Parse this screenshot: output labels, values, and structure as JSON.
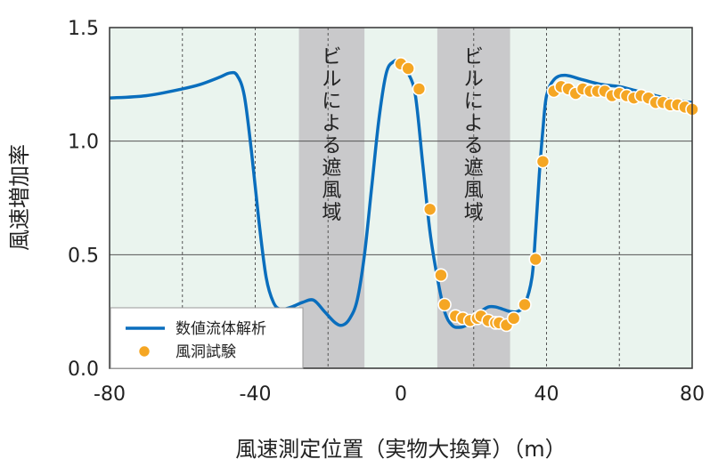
{
  "chart_data": {
    "type": "line",
    "xlabel": "風速測定位置（実物大換算）（m）",
    "ylabel": "風速増加率",
    "xlim": [
      -80,
      80
    ],
    "ylim": [
      0,
      1.5
    ],
    "x_ticks": [
      "-80",
      "-40",
      "0",
      "40",
      "80"
    ],
    "y_ticks": [
      "0.0",
      "0.5",
      "1.0",
      "1.5"
    ],
    "grid": "horizontal solid lines at 0.5 intervals, dashed vertical lines every 20 m",
    "colors": {
      "line": "#0a6ebd",
      "marker_fill": "#f5a623",
      "marker_stroke": "#ffffff",
      "plot_background": "#eaf4ee",
      "shaded_band": "#c9c9cb"
    },
    "shaded_regions": [
      {
        "x": [
          -28,
          -10
        ],
        "label": "ビルによる遮風域"
      },
      {
        "x": [
          10,
          30
        ],
        "label": "ビルによる遮風域"
      }
    ],
    "legend": {
      "position": "bottom-left",
      "entries": [
        "数値流体解析",
        "風洞試験"
      ]
    },
    "series": [
      {
        "name": "数値流体解析",
        "style": "line",
        "x": [
          -80,
          -70,
          -60,
          -55,
          -50,
          -47,
          -45,
          -43,
          -41,
          -39,
          -37,
          -35,
          -33,
          -30,
          -27,
          -24,
          -21,
          -18,
          -16,
          -14,
          -12,
          -10,
          -8,
          -6,
          -4,
          -2,
          0,
          2,
          4,
          6,
          8,
          10,
          12,
          14,
          16,
          18,
          20,
          22,
          24,
          26,
          28,
          30,
          32,
          34,
          36,
          37,
          38,
          39,
          40,
          42,
          45,
          50,
          55,
          60,
          65,
          70,
          75,
          80
        ],
        "y": [
          1.19,
          1.2,
          1.23,
          1.25,
          1.28,
          1.3,
          1.29,
          1.2,
          0.95,
          0.65,
          0.4,
          0.29,
          0.26,
          0.27,
          0.29,
          0.3,
          0.25,
          0.2,
          0.19,
          0.22,
          0.3,
          0.5,
          0.8,
          1.1,
          1.3,
          1.35,
          1.35,
          1.3,
          1.2,
          0.9,
          0.6,
          0.4,
          0.25,
          0.19,
          0.18,
          0.19,
          0.22,
          0.25,
          0.27,
          0.27,
          0.26,
          0.25,
          0.25,
          0.28,
          0.4,
          0.6,
          0.85,
          1.05,
          1.2,
          1.27,
          1.29,
          1.27,
          1.25,
          1.24,
          1.22,
          1.2,
          1.18,
          1.17
        ]
      },
      {
        "name": "風洞試験",
        "style": "markers",
        "x": [
          0,
          2,
          5,
          8,
          11,
          12,
          15,
          17,
          19,
          21,
          22,
          24,
          26,
          27,
          29,
          31,
          34,
          37,
          39,
          42,
          44,
          46,
          48,
          50,
          52,
          54,
          56,
          58,
          60,
          62,
          64,
          66,
          68,
          70,
          72,
          74,
          76,
          78,
          80
        ],
        "y": [
          1.34,
          1.32,
          1.23,
          0.7,
          0.41,
          0.28,
          0.23,
          0.22,
          0.21,
          0.22,
          0.23,
          0.21,
          0.2,
          0.2,
          0.19,
          0.22,
          0.28,
          0.48,
          0.91,
          1.22,
          1.24,
          1.23,
          1.21,
          1.23,
          1.22,
          1.22,
          1.22,
          1.2,
          1.21,
          1.2,
          1.19,
          1.2,
          1.19,
          1.17,
          1.17,
          1.16,
          1.16,
          1.15,
          1.14
        ]
      }
    ]
  }
}
